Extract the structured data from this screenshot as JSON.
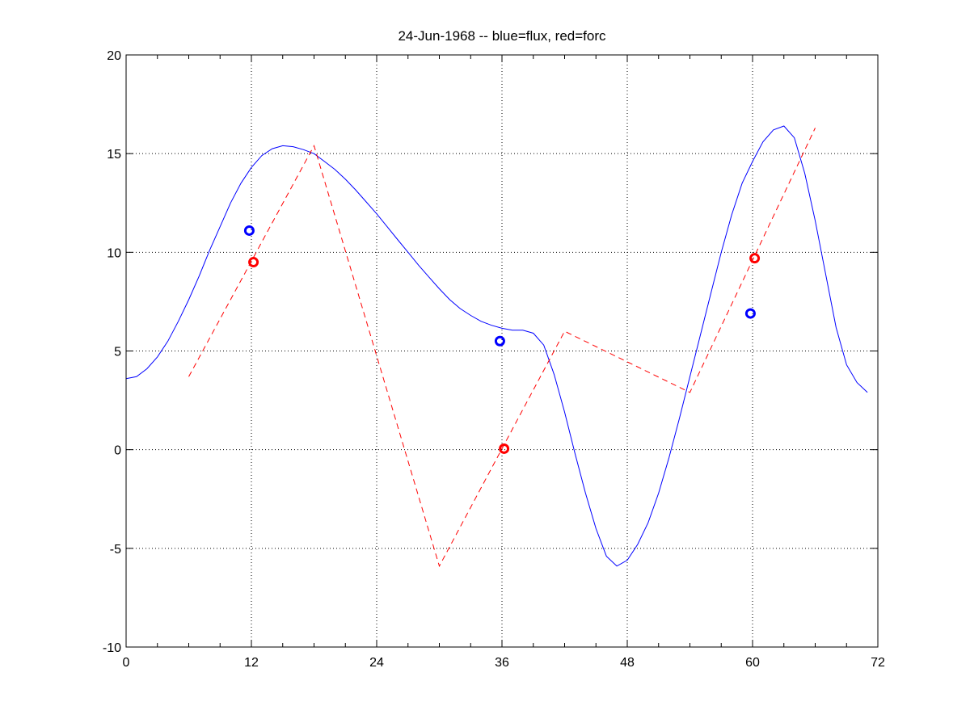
{
  "chart_data": {
    "type": "line",
    "title": "24-Jun-1968 -- blue=flux, red=forc",
    "xlabel": "",
    "ylabel": "",
    "xlim": [
      0,
      72
    ],
    "ylim": [
      -10,
      20
    ],
    "x_ticks": [
      0,
      12,
      24,
      36,
      48,
      60,
      72
    ],
    "y_ticks": [
      -10,
      -5,
      0,
      5,
      10,
      15,
      20
    ],
    "grid": true,
    "series": [
      {
        "key": "flux",
        "color": "#0000ff",
        "style": "solid",
        "points": [
          [
            0,
            3.6
          ],
          [
            1,
            3.7
          ],
          [
            2,
            4.1
          ],
          [
            3,
            4.7
          ],
          [
            4,
            5.5
          ],
          [
            5,
            6.5
          ],
          [
            6,
            7.6
          ],
          [
            7,
            8.8
          ],
          [
            8,
            10.1
          ],
          [
            9,
            11.3
          ],
          [
            10,
            12.5
          ],
          [
            11,
            13.5
          ],
          [
            12,
            14.3
          ],
          [
            13,
            14.9
          ],
          [
            14,
            15.25
          ],
          [
            15,
            15.4
          ],
          [
            16,
            15.35
          ],
          [
            17,
            15.2
          ],
          [
            18,
            15.0
          ],
          [
            19,
            14.6
          ],
          [
            20,
            14.2
          ],
          [
            21,
            13.7
          ],
          [
            22,
            13.15
          ],
          [
            23,
            12.55
          ],
          [
            24,
            11.95
          ],
          [
            25,
            11.3
          ],
          [
            26,
            10.65
          ],
          [
            27,
            10.0
          ],
          [
            28,
            9.35
          ],
          [
            29,
            8.75
          ],
          [
            30,
            8.15
          ],
          [
            31,
            7.6
          ],
          [
            32,
            7.15
          ],
          [
            33,
            6.8
          ],
          [
            34,
            6.5
          ],
          [
            35,
            6.3
          ],
          [
            36,
            6.15
          ],
          [
            37,
            6.05
          ],
          [
            38,
            6.05
          ],
          [
            39,
            5.9
          ],
          [
            40,
            5.3
          ],
          [
            41,
            3.8
          ],
          [
            42,
            1.9
          ],
          [
            43,
            -0.2
          ],
          [
            44,
            -2.2
          ],
          [
            45,
            -4.0
          ],
          [
            46,
            -5.4
          ],
          [
            47,
            -5.9
          ],
          [
            48,
            -5.6
          ],
          [
            49,
            -4.8
          ],
          [
            50,
            -3.7
          ],
          [
            51,
            -2.2
          ],
          [
            52,
            -0.4
          ],
          [
            53,
            1.6
          ],
          [
            54,
            3.7
          ],
          [
            55,
            5.8
          ],
          [
            56,
            7.9
          ],
          [
            57,
            10.0
          ],
          [
            58,
            11.9
          ],
          [
            59,
            13.5
          ],
          [
            60,
            14.6
          ],
          [
            61,
            15.6
          ],
          [
            62,
            16.2
          ],
          [
            63,
            16.4
          ],
          [
            64,
            15.8
          ],
          [
            65,
            14.0
          ],
          [
            66,
            11.6
          ],
          [
            67,
            8.9
          ],
          [
            68,
            6.2
          ],
          [
            69,
            4.3
          ],
          [
            70,
            3.4
          ],
          [
            71,
            2.9
          ]
        ]
      },
      {
        "key": "forc",
        "color": "#ff0000",
        "style": "dashed",
        "points": [
          [
            6,
            3.7
          ],
          [
            18,
            15.4
          ],
          [
            30,
            -5.9
          ],
          [
            42,
            6.0
          ],
          [
            54,
            2.9
          ],
          [
            66,
            16.3
          ]
        ]
      }
    ],
    "markers": [
      {
        "key": "flux",
        "color": "#0000ff",
        "points": [
          [
            11.8,
            11.1
          ],
          [
            35.8,
            5.5
          ],
          [
            59.8,
            6.9
          ]
        ]
      },
      {
        "key": "forc",
        "color": "#ff0000",
        "points": [
          [
            12.2,
            9.5
          ],
          [
            36.2,
            0.05
          ],
          [
            60.2,
            9.7
          ]
        ]
      }
    ]
  }
}
